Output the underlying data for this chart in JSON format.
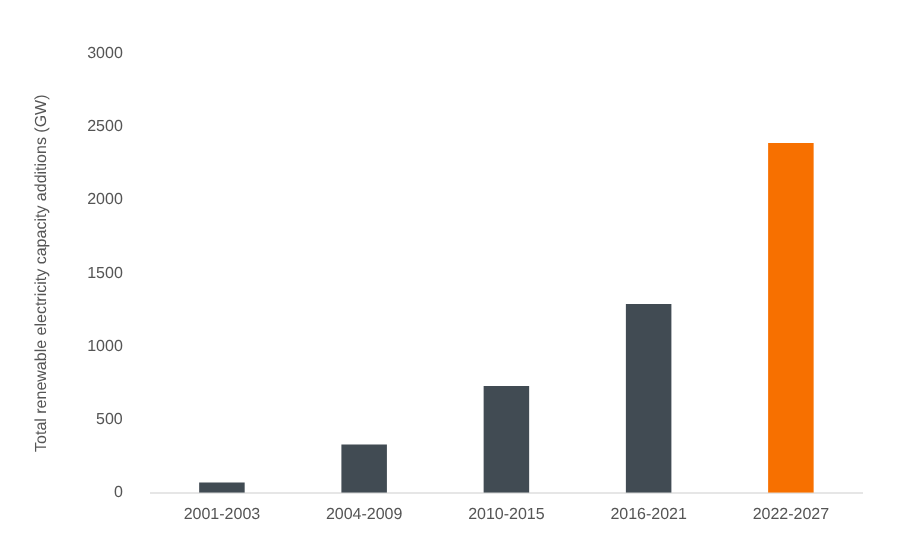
{
  "chart_data": {
    "type": "bar",
    "ylabel": "Total renewable electricity capacity additions (GW)",
    "categories": [
      "2001-2003",
      "2004-2009",
      "2010-2015",
      "2016-2021",
      "2022-2027"
    ],
    "values": [
      70,
      330,
      730,
      1290,
      2390
    ],
    "colors": [
      "#414b53",
      "#414b53",
      "#414b53",
      "#414b53",
      "#f77000"
    ],
    "ylim": [
      0,
      3000
    ],
    "yticks": [
      0,
      500,
      1000,
      1500,
      2000,
      2500,
      3000
    ],
    "grid": false,
    "legend": false
  }
}
